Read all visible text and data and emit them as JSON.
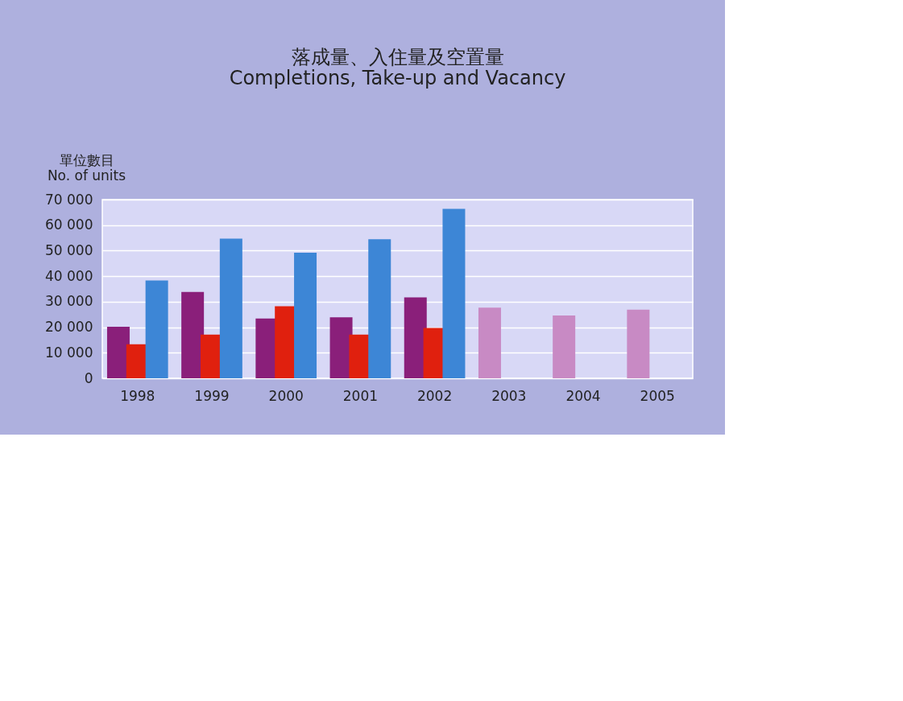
{
  "chart_data": {
    "type": "bar",
    "title": [
      "落成量、入住量及空置量",
      "Completions, Take-up and Vacancy"
    ],
    "ylabel": [
      "單位數目",
      "No. of units"
    ],
    "categories": [
      "1998",
      "1999",
      "2000",
      "2001",
      "2002",
      "2003",
      "2004",
      "2005"
    ],
    "series": [
      {
        "colors": [
          "#8a1f7a",
          "#8a1f7a",
          "#8a1f7a",
          "#8a1f7a",
          "#8a1f7a",
          "#c88ac4",
          "#c88ac4",
          "#c88ac4"
        ],
        "values": [
          20200,
          33800,
          23400,
          23900,
          31700,
          27700,
          24600,
          26900
        ]
      },
      {
        "color": "#e0200e",
        "values": [
          13300,
          17100,
          28200,
          17100,
          19700,
          null,
          null,
          null
        ]
      },
      {
        "color": "#3d86d6",
        "values": [
          38300,
          54700,
          49200,
          54500,
          66400,
          null,
          null,
          null
        ]
      }
    ],
    "ylim": [
      0,
      70000
    ],
    "yticks": [
      0,
      {
        "value": 10000,
        "label": "10 000"
      },
      {
        "value": 20000,
        "label": "20 000"
      },
      {
        "value": 30000,
        "label": "30 000"
      },
      {
        "value": 40000,
        "label": "40 000"
      },
      {
        "value": 50000,
        "label": "50 000"
      },
      {
        "value": 60000,
        "label": "60 000"
      },
      {
        "value": 70000,
        "label": "70 000"
      }
    ],
    "grid": "y"
  }
}
